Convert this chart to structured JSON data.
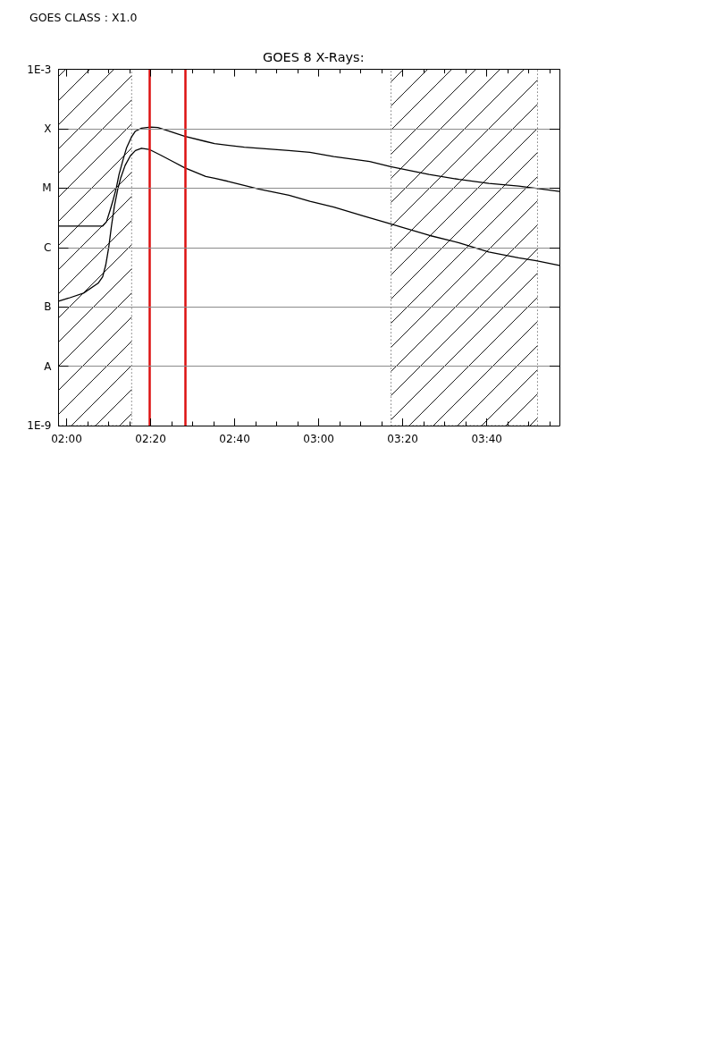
{
  "chart_data": {
    "type": "line",
    "title": "GOES 8 X-Rays:",
    "annotations": [
      "GOES CLASS : X1.0"
    ],
    "series": [
      {
        "color": "#000000",
        "x": [
          1.968,
          2.143,
          2.158,
          2.173,
          2.185,
          2.197,
          2.208,
          2.223,
          2.238,
          2.257,
          2.273,
          2.297,
          2.333,
          2.362,
          2.398,
          2.468,
          2.552,
          2.587,
          2.705,
          2.882,
          2.965,
          3.06,
          3.202,
          3.285,
          3.438,
          3.557,
          3.675,
          3.793,
          3.863,
          3.955
        ],
        "values": [
          2.3e-06,
          2.3e-06,
          2.7e-06,
          4.3e-06,
          6.4e-06,
          1e-05,
          1.7e-05,
          2.9e-05,
          4.8e-05,
          7.2e-05,
          9.1e-05,
          0.000102,
          0.000107,
          0.000105,
          9.4e-05,
          7.5e-05,
          6.1e-05,
          5.6e-05,
          4.9e-05,
          4.3e-05,
          4e-05,
          3.4e-05,
          2.8e-05,
          2.3e-05,
          1.7e-05,
          1.4e-05,
          1.2e-05,
          1.08e-05,
          9.9e-06,
          8.8e-06
        ]
      },
      {
        "color": "#000000",
        "x": [
          1.968,
          2.008,
          2.067,
          2.125,
          2.143,
          2.155,
          2.167,
          2.178,
          2.19,
          2.203,
          2.215,
          2.232,
          2.253,
          2.273,
          2.297,
          2.327,
          2.373,
          2.422,
          2.468,
          2.552,
          2.587,
          2.647,
          2.765,
          2.882,
          2.965,
          3.06,
          3.178,
          3.285,
          3.438,
          3.557,
          3.675,
          3.793,
          3.863,
          3.955
        ],
        "values": [
          1.25e-07,
          1.4e-07,
          1.7e-07,
          2.5e-07,
          3.2e-07,
          5e-07,
          1e-06,
          2.3e-06,
          5.1e-06,
          9.6e-06,
          1.5e-05,
          2.4e-05,
          3.5e-05,
          4.3e-05,
          4.7e-05,
          4.5e-05,
          3.6e-05,
          2.8e-05,
          2.2e-05,
          1.57e-05,
          1.47e-05,
          1.28e-05,
          9.6e-06,
          7.6e-06,
          6e-06,
          4.8e-06,
          3.4e-06,
          2.5e-06,
          1.6e-06,
          1.2e-06,
          8.4e-07,
          6.7e-07,
          6e-07,
          5e-07
        ]
      }
    ],
    "xlim": [
      1.968,
      3.955
    ],
    "xticks": [
      {
        "value": 2,
        "label": "02:00"
      },
      {
        "value": 2.0833,
        "label": null
      },
      {
        "value": 2.1667,
        "label": null
      },
      {
        "value": 2.25,
        "label": null
      },
      {
        "value": 2.3333,
        "label": "02:20"
      },
      {
        "value": 2.4167,
        "label": null
      },
      {
        "value": 2.5,
        "label": null
      },
      {
        "value": 2.5833,
        "label": null
      },
      {
        "value": 2.6667,
        "label": "02:40"
      },
      {
        "value": 2.75,
        "label": null
      },
      {
        "value": 2.8333,
        "label": null
      },
      {
        "value": 2.9167,
        "label": null
      },
      {
        "value": 3,
        "label": "03:00"
      },
      {
        "value": 3.0833,
        "label": null
      },
      {
        "value": 3.1667,
        "label": null
      },
      {
        "value": 3.25,
        "label": null
      },
      {
        "value": 3.3333,
        "label": "03:20"
      },
      {
        "value": 3.4167,
        "label": null
      },
      {
        "value": 3.5,
        "label": null
      },
      {
        "value": 3.5833,
        "label": null
      },
      {
        "value": 3.6667,
        "label": "03:40"
      },
      {
        "value": 3.75,
        "label": null
      },
      {
        "value": 3.8333,
        "label": null
      },
      {
        "value": 3.9167,
        "label": null
      }
    ],
    "ylim": [
      1e-09,
      0.001
    ],
    "yticks": [
      {
        "value": 1e-09,
        "label": "1E-9"
      },
      {
        "value": 1e-08,
        "label": "A"
      },
      {
        "value": 1e-07,
        "label": "B"
      },
      {
        "value": 1e-06,
        "label": "C"
      },
      {
        "value": 1e-05,
        "label": "M"
      },
      {
        "value": 0.0001,
        "label": "X"
      },
      {
        "value": 0.001,
        "label": "1E-3"
      }
    ],
    "log": "y",
    "grid": "y",
    "marker": "none",
    "line_style": "solid",
    "ref_lines": [
      {
        "axis": "x",
        "value": 2.328,
        "color": "#dd1111"
      },
      {
        "axis": "x",
        "value": 2.472,
        "color": "#dd1111"
      }
    ],
    "bands": [
      {
        "axis": "x",
        "from": 1.968,
        "to": 2.258
      },
      {
        "axis": "x",
        "from": 3.287,
        "to": 3.868
      }
    ]
  }
}
